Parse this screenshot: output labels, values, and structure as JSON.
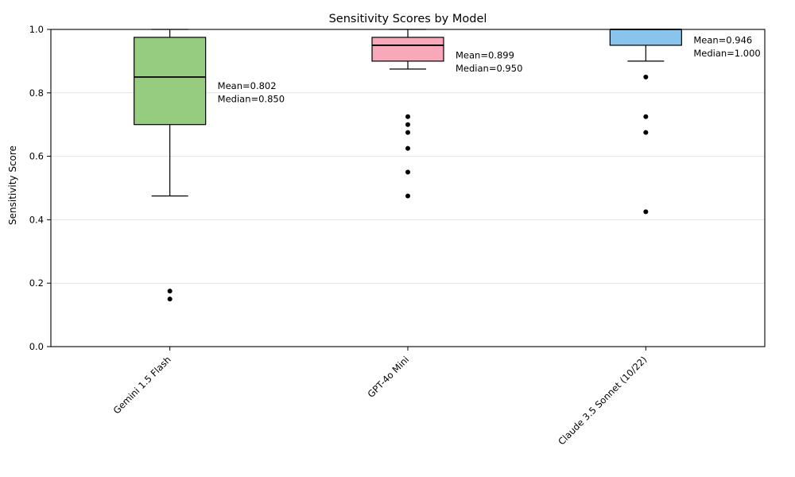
{
  "figure": {
    "title": "Sensitivity Scores by Model",
    "ylabel": "Sensitivity Score"
  },
  "chart_data": {
    "type": "box",
    "title": "Sensitivity Scores by Model",
    "xlabel": "",
    "ylabel": "Sensitivity Score",
    "ylim": [
      0.0,
      1.0
    ],
    "yticks": [
      0.0,
      0.2,
      0.4,
      0.6,
      0.8,
      1.0
    ],
    "ytick_labels": [
      "0.0",
      "0.2",
      "0.4",
      "0.6",
      "0.8",
      "1.0"
    ],
    "grid": "horizontal",
    "grid_color": "#e4e4e4",
    "line_color": "#000000",
    "categories": [
      "Gemini 1.5 Flash",
      "GPT-4o Mini",
      "Claude 3.5 Sonnet (10/22)"
    ],
    "series": [
      {
        "name": "Gemini 1.5 Flash",
        "box_color": "#96cc80",
        "whisker_low": 0.475,
        "q1": 0.7,
        "median": 0.85,
        "q3": 0.975,
        "whisker_high": 1.0,
        "mean": 0.802,
        "outliers": [
          0.175,
          0.15
        ],
        "annotation_lines": [
          "Mean=0.802",
          "Median=0.850"
        ]
      },
      {
        "name": "GPT-4o Mini",
        "box_color": "#f8a8b8",
        "whisker_low": 0.875,
        "q1": 0.9,
        "median": 0.95,
        "q3": 0.975,
        "whisker_high": 1.0,
        "mean": 0.899,
        "outliers": [
          0.725,
          0.7,
          0.675,
          0.625,
          0.55,
          0.475
        ],
        "annotation_lines": [
          "Mean=0.899",
          "Median=0.950"
        ]
      },
      {
        "name": "Claude 3.5 Sonnet (10/22)",
        "box_color": "#89c4ec",
        "whisker_low": 0.9,
        "q1": 0.95,
        "median": 1.0,
        "q3": 1.0,
        "whisker_high": 1.0,
        "mean": 0.946,
        "outliers": [
          0.85,
          0.725,
          0.675,
          0.425
        ],
        "annotation_lines": [
          "Mean=0.946",
          "Median=1.000"
        ]
      }
    ]
  }
}
